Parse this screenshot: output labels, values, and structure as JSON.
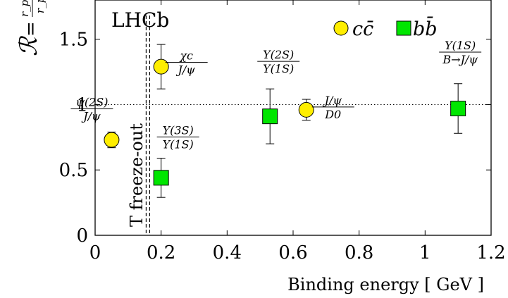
{
  "chart_data": {
    "type": "scatter",
    "title": "",
    "xlabel": "Binding energy [ GeV ]",
    "ylabel": "R = r_pPb / r_pp",
    "xlim": [
      0,
      1.2
    ],
    "ylim": [
      0,
      1.8
    ],
    "x_ticks": [
      "0",
      "0.2",
      "0.4",
      "0.6",
      "0.8",
      "1",
      "1.2"
    ],
    "y_ticks": [
      "0",
      "0.5",
      "1",
      "1.5"
    ],
    "experiment_label": "LHCb",
    "legend": {
      "placement": "top-right",
      "entries": [
        "cc̄",
        "bb̄"
      ]
    },
    "reference_line": {
      "y": 1,
      "style": "dotted"
    },
    "threshold_line": {
      "x": 0.16,
      "style": "dashed",
      "label": "T freeze-out"
    },
    "series": [
      {
        "name": "cc̄",
        "marker": "circle",
        "color": "#ffee00",
        "points": [
          {
            "x": 0.05,
            "y": 0.73,
            "yerr_low": 0.06,
            "yerr_high": 0.06,
            "label_num": "ψ(2S)",
            "label_den": "J/ψ"
          },
          {
            "x": 0.2,
            "y": 1.29,
            "yerr_low": 0.17,
            "yerr_high": 0.17,
            "label_num": "χc",
            "label_den": "J/ψ"
          },
          {
            "x": 0.64,
            "y": 0.96,
            "yerr_low": 0.08,
            "yerr_high": 0.08,
            "label_num": "J/ψ",
            "label_den": "D0"
          }
        ]
      },
      {
        "name": "bb̄",
        "marker": "square",
        "color": "#00e600",
        "points": [
          {
            "x": 0.2,
            "y": 0.44,
            "yerr_low": 0.15,
            "yerr_high": 0.15,
            "label_num": "Υ(3S)",
            "label_den": "Υ(1S)"
          },
          {
            "x": 0.53,
            "y": 0.91,
            "yerr_low": 0.21,
            "yerr_high": 0.21,
            "label_num": "Υ(2S)",
            "label_den": "Υ(1S)"
          },
          {
            "x": 1.1,
            "y": 0.97,
            "yerr_low": 0.19,
            "yerr_high": 0.19,
            "label_num": "Υ(1S)",
            "label_den": "B→J/ψ"
          }
        ]
      }
    ]
  }
}
